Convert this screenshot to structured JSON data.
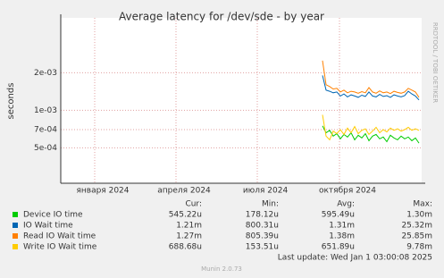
{
  "chart_data": {
    "type": "line",
    "title": "Average latency for /dev/sde - by year",
    "y_label": "seconds",
    "side_label": "RRDTOOL / TOBI OETIKER",
    "log_scale": true,
    "grid": true,
    "xlim": [
      -37,
      367
    ],
    "xticks": [
      {
        "value": 1,
        "label": "января 2024"
      },
      {
        "value": 92,
        "label": "апреля 2024"
      },
      {
        "value": 183,
        "label": "июля 2024"
      },
      {
        "value": 275,
        "label": "октября 2024"
      }
    ],
    "ylim": [
      0.00026,
      0.0055
    ],
    "yticks": [
      {
        "value": 0.0005,
        "label": "5e-04"
      },
      {
        "value": 0.0007,
        "label": "7e-04"
      },
      {
        "value": 0.001,
        "label": "1e-03"
      },
      {
        "value": 0.002,
        "label": "2e-03"
      }
    ],
    "x": [
      256,
      260,
      264,
      268,
      272,
      276,
      280,
      284,
      288,
      292,
      296,
      300,
      304,
      308,
      312,
      316,
      320,
      324,
      328,
      332,
      336,
      340,
      344,
      348,
      352,
      356,
      360,
      364
    ],
    "legend_columns": [
      "Cur:",
      "Min:",
      "Avg:",
      "Max:"
    ],
    "series": [
      {
        "name": "Device IO time",
        "color": "#00cc00",
        "stats": [
          "545.22u",
          "178.12u",
          "595.49u",
          "1.30m"
        ],
        "values": [
          0.00075,
          0.00066,
          0.00069,
          0.00062,
          0.00065,
          0.00059,
          0.00064,
          0.00061,
          0.00066,
          0.00058,
          0.00063,
          0.0006,
          0.00065,
          0.00057,
          0.00062,
          0.00064,
          0.00059,
          0.00061,
          0.00056,
          0.00063,
          0.0006,
          0.00058,
          0.00062,
          0.00059,
          0.00061,
          0.00057,
          0.0006,
          0.000545
        ]
      },
      {
        "name": "IO Wait time",
        "color": "#0066b3",
        "stats": [
          "1.21m",
          "800.31u",
          "1.31m",
          "25.32m"
        ],
        "values": [
          0.0019,
          0.00145,
          0.00142,
          0.00138,
          0.0014,
          0.0013,
          0.00135,
          0.00128,
          0.00133,
          0.0013,
          0.00127,
          0.00132,
          0.00129,
          0.0014,
          0.0013,
          0.00128,
          0.00134,
          0.00129,
          0.00131,
          0.00127,
          0.00133,
          0.0013,
          0.00128,
          0.00131,
          0.00142,
          0.00135,
          0.0013,
          0.00121
        ]
      },
      {
        "name": "Read IO Wait time",
        "color": "#ff8000",
        "stats": [
          "1.27m",
          "805.39u",
          "1.38m",
          "25.85m"
        ],
        "values": [
          0.0025,
          0.0016,
          0.00155,
          0.00148,
          0.0015,
          0.0014,
          0.00145,
          0.00138,
          0.00142,
          0.0014,
          0.00137,
          0.00141,
          0.00138,
          0.00152,
          0.0014,
          0.00137,
          0.00143,
          0.00138,
          0.0014,
          0.00136,
          0.00142,
          0.00139,
          0.00137,
          0.0014,
          0.0015,
          0.00145,
          0.0014,
          0.00127
        ]
      },
      {
        "name": "Write IO Wait time",
        "color": "#ffcc00",
        "stats": [
          "688.68u",
          "153.51u",
          "651.89u",
          "9.78m"
        ],
        "values": [
          0.00092,
          0.00062,
          0.00058,
          0.00068,
          0.00065,
          0.0007,
          0.00064,
          0.00072,
          0.00066,
          0.00074,
          0.00065,
          0.00069,
          0.00071,
          0.00064,
          0.00068,
          0.00073,
          0.00066,
          0.0007,
          0.00067,
          0.00072,
          0.00069,
          0.00071,
          0.00068,
          0.0007,
          0.00073,
          0.00069,
          0.00071,
          0.000689
        ]
      }
    ],
    "last_update": "Last update: Wed Jan  1 03:00:08 2025",
    "footer": "Munin 2.0.73"
  }
}
